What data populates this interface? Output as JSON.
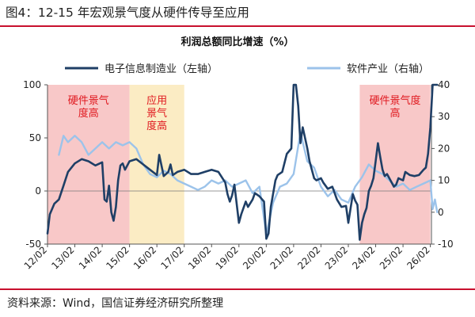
{
  "figure": {
    "title": "图4：12-15 年宏观景气度从硬件传导至应用",
    "source": "资料来源：Wind，国信证券经济研究所整理"
  },
  "chart_data": {
    "type": "line",
    "title": "利润总额同比增速（%）",
    "x_tick_labels": [
      "12/02",
      "13/02",
      "14/02",
      "15/02",
      "16/02",
      "17/02",
      "18/02",
      "19/02",
      "20/02",
      "21/02",
      "22/02",
      "23/02",
      "24/02",
      "25/02",
      "26/02"
    ],
    "y_left": {
      "lim": [
        -50,
        100
      ],
      "ticks": [
        -50,
        0,
        50,
        100
      ]
    },
    "y_right": {
      "lim": [
        -10,
        40
      ],
      "ticks": [
        -10,
        0,
        10,
        20,
        30,
        40
      ]
    },
    "grid": false,
    "legend_position": "top",
    "shaded_regions": [
      {
        "label": "硬件景气度高",
        "label_lines": [
          "硬件景气",
          "度高"
        ],
        "start": "12/02",
        "end": "15/02",
        "color": "#f8c8c8"
      },
      {
        "label": "应用景气度高",
        "label_lines": [
          "应用",
          "景气",
          "度高"
        ],
        "start": "15/02",
        "end": "17/02",
        "color": "#fbecc4"
      },
      {
        "label": "硬件景气度高",
        "label_lines": [
          "硬件景气度",
          "高"
        ],
        "start": "23/07",
        "end": "26/02",
        "color": "#f8c8c8"
      }
    ],
    "series": [
      {
        "name": "电子信息制造业（左轴）",
        "axis": "left",
        "color": "#1f3f66",
        "x": [
          "12/02",
          "12/03",
          "12/05",
          "12/07",
          "12/09",
          "12/11",
          "13/02",
          "13/05",
          "13/08",
          "13/11",
          "14/02",
          "14/03",
          "14/04",
          "14/05",
          "14/06",
          "14/07",
          "14/08",
          "14/09",
          "14/10",
          "14/11",
          "14/12",
          "15/02",
          "15/05",
          "15/08",
          "15/11",
          "16/02",
          "16/03",
          "16/05",
          "16/07",
          "16/08",
          "16/09",
          "16/11",
          "17/02",
          "17/05",
          "17/08",
          "17/11",
          "18/02",
          "18/05",
          "18/08",
          "18/09",
          "18/10",
          "18/11",
          "18/12",
          "19/02",
          "19/03",
          "19/05",
          "19/06",
          "19/08",
          "19/09",
          "19/11",
          "20/01",
          "20/02",
          "20/03",
          "20/04",
          "20/06",
          "20/07",
          "20/09",
          "20/11",
          "21/01",
          "21/02",
          "21/03",
          "21/04",
          "21/05",
          "21/06",
          "21/07",
          "21/08",
          "21/09",
          "21/10",
          "21/11",
          "21/12",
          "22/02",
          "22/03",
          "22/05",
          "22/07",
          "22/09",
          "22/11",
          "23/01",
          "23/02",
          "23/03",
          "23/04",
          "23/05",
          "23/06",
          "23/07",
          "23/08",
          "23/09",
          "23/10",
          "23/11",
          "23/12",
          "24/01",
          "24/02",
          "24/03",
          "24/04",
          "24/05",
          "24/06",
          "24/07",
          "24/08",
          "24/09",
          "24/10",
          "24/11",
          "24/12",
          "25/02",
          "25/03",
          "25/05",
          "25/07",
          "25/09",
          "25/11",
          "25/12",
          "26/01",
          "26/02",
          "26/03",
          "26/04",
          "26/05"
        ],
        "values": [
          -40,
          -22,
          -12,
          -8,
          5,
          18,
          26,
          30,
          28,
          24,
          27,
          -8,
          -10,
          5,
          -20,
          -28,
          -15,
          10,
          24,
          26,
          20,
          28,
          30,
          25,
          20,
          15,
          34,
          14,
          18,
          25,
          15,
          18,
          20,
          16,
          16,
          18,
          20,
          18,
          8,
          -3,
          -10,
          -4,
          6,
          -30,
          -22,
          -10,
          -15,
          -8,
          -2,
          -5,
          -10,
          -45,
          -40,
          -15,
          10,
          15,
          18,
          35,
          40,
          100,
          118,
          80,
          45,
          60,
          50,
          40,
          28,
          20,
          12,
          10,
          12,
          8,
          2,
          4,
          -8,
          -15,
          -14,
          -30,
          -16,
          -3,
          -9,
          -13,
          -46,
          -30,
          -22,
          -16,
          0,
          5,
          12,
          28,
          45,
          32,
          20,
          14,
          16,
          12,
          8,
          4,
          6,
          12,
          10,
          18,
          15,
          14,
          15,
          20,
          22,
          35,
          60,
          100,
          100,
          100
        ]
      },
      {
        "name": "软件产业（右轴）",
        "axis": "right",
        "color": "#9cc3ea",
        "x": [
          "12/07",
          "12/09",
          "12/11",
          "13/02",
          "13/05",
          "13/08",
          "13/11",
          "14/02",
          "14/05",
          "14/08",
          "14/11",
          "15/02",
          "15/05",
          "15/08",
          "15/11",
          "16/02",
          "16/05",
          "16/08",
          "16/11",
          "17/02",
          "17/05",
          "17/08",
          "17/11",
          "18/02",
          "18/05",
          "18/08",
          "18/11",
          "19/02",
          "19/05",
          "19/08",
          "19/11",
          "20/02",
          "20/05",
          "20/08",
          "20/11",
          "21/02",
          "21/05",
          "21/08",
          "21/11",
          "22/02",
          "22/05",
          "22/08",
          "22/11",
          "23/02",
          "23/05",
          "23/08",
          "23/11",
          "24/02",
          "24/05",
          "24/08",
          "24/11",
          "25/02",
          "25/05",
          "25/08",
          "25/11",
          "26/02",
          "26/03",
          "26/04",
          "26/05"
        ],
        "values": [
          18,
          24,
          22,
          24,
          22,
          18,
          20,
          22,
          20,
          22,
          21,
          22,
          20,
          15,
          12,
          11,
          13,
          12,
          10,
          9,
          8,
          7,
          8,
          10,
          9,
          10,
          8,
          9,
          10,
          6,
          8,
          -7,
          3,
          8,
          9,
          12,
          25,
          16,
          14,
          8,
          5,
          7,
          4,
          3,
          8,
          11,
          15,
          13,
          12,
          10,
          8,
          9,
          7,
          8,
          9,
          10,
          1,
          4,
          0
        ]
      }
    ]
  }
}
